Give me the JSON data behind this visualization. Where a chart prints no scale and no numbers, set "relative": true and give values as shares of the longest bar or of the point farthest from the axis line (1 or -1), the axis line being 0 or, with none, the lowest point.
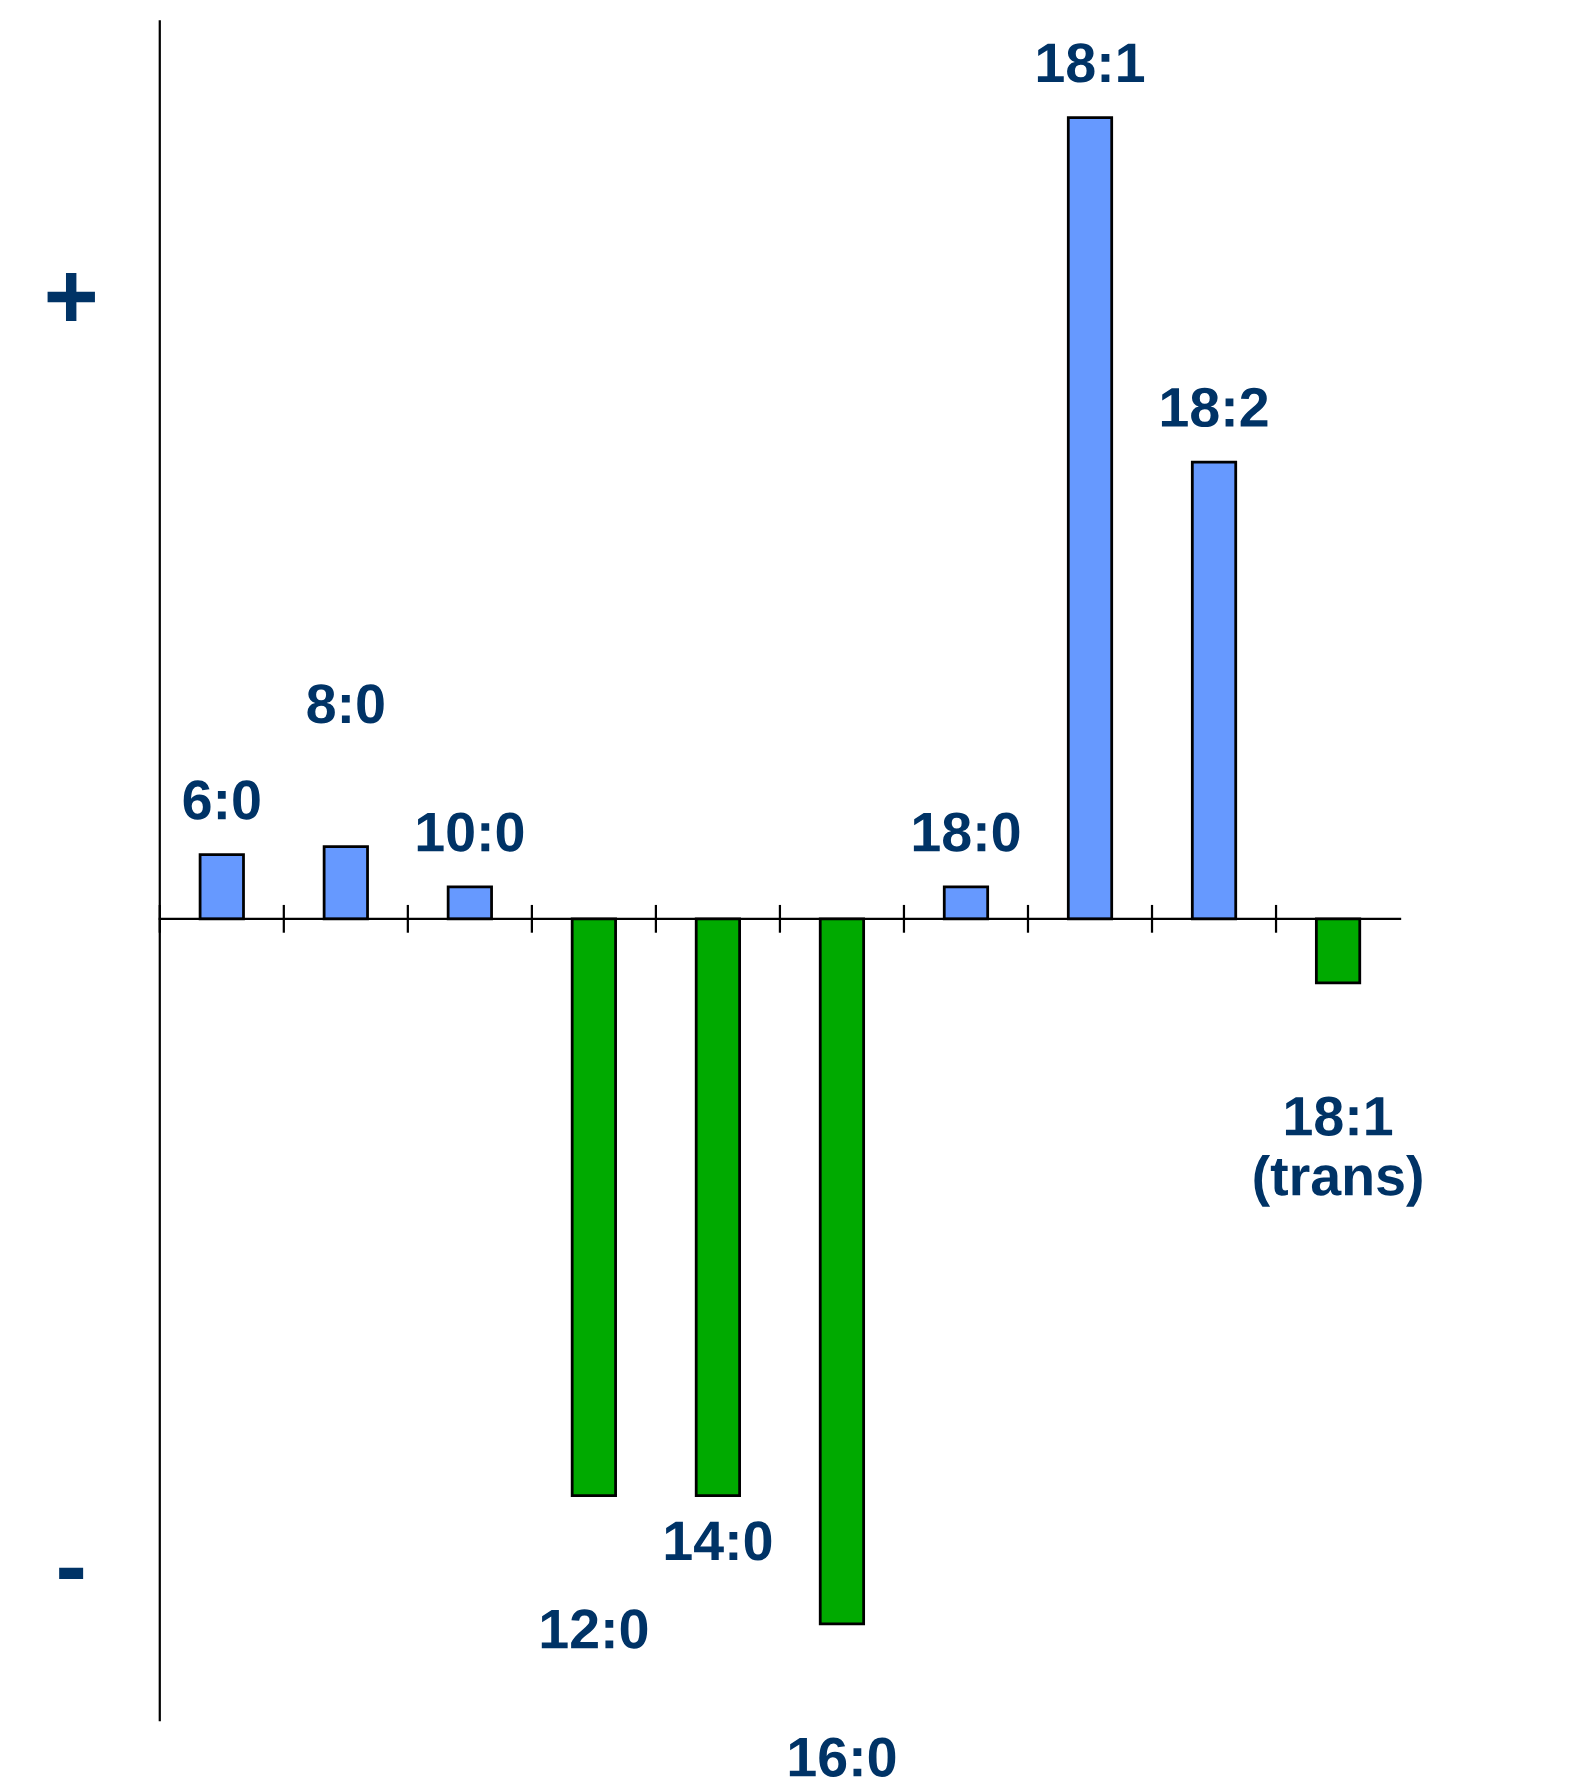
{
  "chart_data": {
    "type": "bar",
    "relative": true,
    "categories": [
      "6:0",
      "8:0",
      "10:0",
      "12:0",
      "14:0",
      "16:0",
      "18:0",
      "18:1",
      "18:2",
      "18:1\n(trans)"
    ],
    "values": [
      0.08,
      0.09,
      0.04,
      -0.72,
      -0.72,
      -0.88,
      0.04,
      1,
      0.57,
      -0.08
    ],
    "colors": [
      "#6699ff",
      "#6699ff",
      "#6699ff",
      "#00aa00",
      "#00aa00",
      "#00aa00",
      "#6699ff",
      "#6699ff",
      "#6699ff",
      "#00aa00"
    ],
    "annotations": [
      "+",
      "-"
    ],
    "grid": false,
    "legend": false
  }
}
